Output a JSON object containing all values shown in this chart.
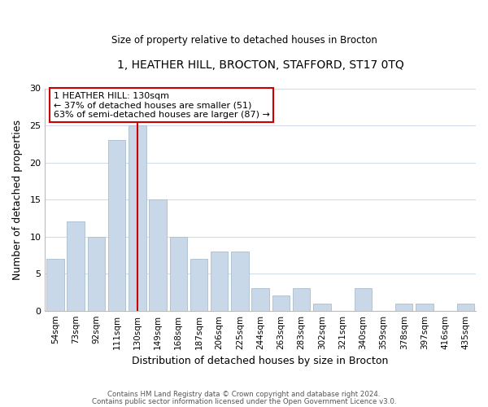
{
  "title": "1, HEATHER HILL, BROCTON, STAFFORD, ST17 0TQ",
  "subtitle": "Size of property relative to detached houses in Brocton",
  "xlabel": "Distribution of detached houses by size in Brocton",
  "ylabel": "Number of detached properties",
  "categories": [
    "54sqm",
    "73sqm",
    "92sqm",
    "111sqm",
    "130sqm",
    "149sqm",
    "168sqm",
    "187sqm",
    "206sqm",
    "225sqm",
    "244sqm",
    "263sqm",
    "283sqm",
    "302sqm",
    "321sqm",
    "340sqm",
    "359sqm",
    "378sqm",
    "397sqm",
    "416sqm",
    "435sqm"
  ],
  "values": [
    7,
    12,
    10,
    23,
    25,
    15,
    10,
    7,
    8,
    8,
    3,
    2,
    3,
    1,
    0,
    3,
    0,
    1,
    1,
    0,
    1
  ],
  "bar_color": "#c8d8e8",
  "bar_edgecolor": "#a8bece",
  "highlight_index": 4,
  "highlight_line_color": "#cc0000",
  "ylim": [
    0,
    30
  ],
  "yticks": [
    0,
    5,
    10,
    15,
    20,
    25,
    30
  ],
  "annotation_text": "1 HEATHER HILL: 130sqm\n← 37% of detached houses are smaller (51)\n63% of semi-detached houses are larger (87) →",
  "annotation_box_edgecolor": "#cc0000",
  "footer_line1": "Contains HM Land Registry data © Crown copyright and database right 2024.",
  "footer_line2": "Contains public sector information licensed under the Open Government Licence v3.0.",
  "background_color": "#ffffff",
  "grid_color": "#d0dce8"
}
